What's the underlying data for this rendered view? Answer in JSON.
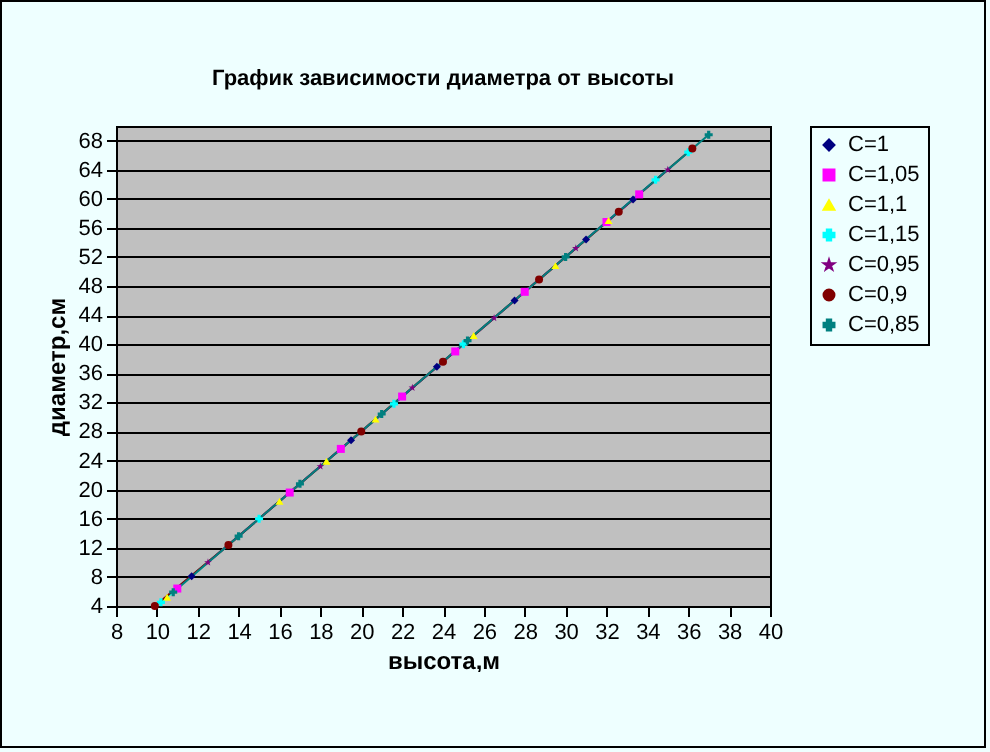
{
  "chart_data": {
    "type": "line",
    "title": "График зависимости диаметра от высоты",
    "xlabel": "высота,м",
    "ylabel": "диаметр,см",
    "xlim": [
      8,
      40
    ],
    "xticks": [
      8,
      10,
      12,
      14,
      16,
      18,
      20,
      22,
      24,
      26,
      28,
      30,
      32,
      34,
      36,
      38,
      40
    ],
    "ylim": [
      4,
      70
    ],
    "yticks": [
      4,
      8,
      12,
      16,
      20,
      24,
      28,
      32,
      36,
      40,
      44,
      48,
      52,
      56,
      60,
      64,
      68
    ],
    "grid": "y",
    "legend": "right",
    "line_style": "solid",
    "series": [
      {
        "name": "C=1",
        "color": "#000080",
        "marker": "diamond",
        "x": [
          11.7,
          19.5,
          23.7,
          27.5,
          31,
          33.3
        ],
        "values": [
          8.1,
          26.8,
          36.9,
          46,
          54.4,
          59.9
        ]
      },
      {
        "name": "C=1,05",
        "color": "#ff00ff",
        "marker": "square",
        "x": [
          11,
          16.5,
          19,
          22,
          24.6,
          28,
          32,
          33.6
        ],
        "values": [
          6.4,
          19.6,
          25.6,
          32.8,
          39,
          47.2,
          56.8,
          60.6
        ]
      },
      {
        "name": "C=1,1",
        "color": "#ffff00",
        "marker": "triangle",
        "x": [
          10.5,
          16,
          18.3,
          20.7,
          25.5,
          29.5,
          32.1
        ],
        "values": [
          5.2,
          18.4,
          23.9,
          29.7,
          41.2,
          50.8,
          57
        ]
      },
      {
        "name": "C=1,15",
        "color": "#00ffff",
        "marker": "cross",
        "x": [
          10.2,
          15,
          21.6,
          25,
          34.4,
          36
        ],
        "values": [
          4.5,
          16,
          31.8,
          40,
          62.6,
          66.4
        ]
      },
      {
        "name": "C=0,95",
        "color": "#800080",
        "marker": "star",
        "x": [
          12.5,
          18,
          22.5,
          26.5,
          30.5,
          35
        ],
        "values": [
          10,
          23.2,
          34,
          43.6,
          53.2,
          64
        ]
      },
      {
        "name": "C=0,9",
        "color": "#800000",
        "marker": "circle",
        "x": [
          9.9,
          13.5,
          20,
          24,
          28.7,
          32.6,
          36.2
        ],
        "values": [
          4,
          12.4,
          28,
          37.6,
          48.9,
          58.2,
          66.9
        ]
      },
      {
        "name": "C=0,85",
        "color": "#008080",
        "marker": "cross",
        "x": [
          10.8,
          14,
          17,
          21,
          25.2,
          30,
          37
        ],
        "values": [
          5.9,
          13.6,
          20.8,
          30.4,
          40.5,
          52,
          68.8
        ]
      }
    ]
  }
}
